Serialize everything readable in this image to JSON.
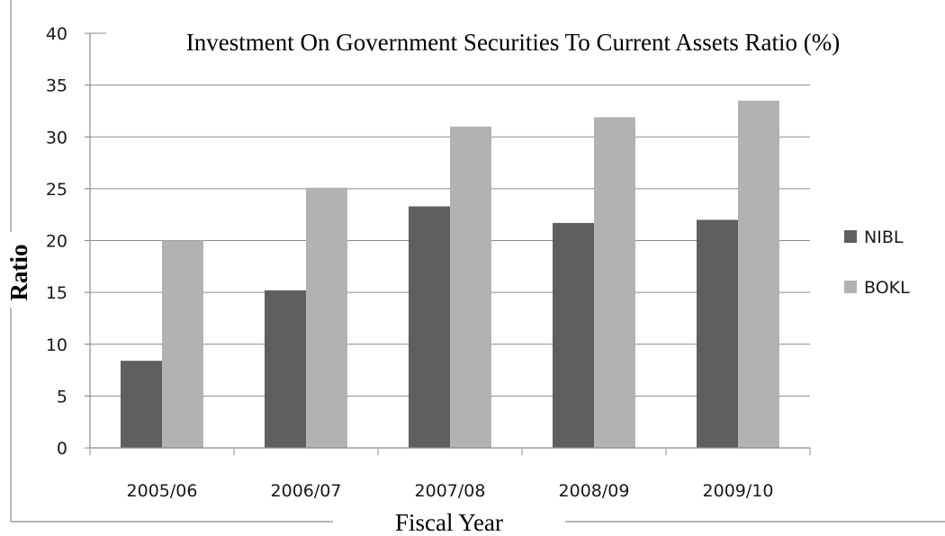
{
  "chart_data": {
    "type": "bar",
    "title": "Investment On Government Securities To Current Assets Ratio (%)",
    "xlabel": "Fiscal Year",
    "ylabel": "Ratio",
    "categories": [
      "2005/06",
      "2006/07",
      "2007/08",
      "2008/09",
      "2009/10"
    ],
    "series": [
      {
        "name": "NIBL",
        "values": [
          8.4,
          15.2,
          23.3,
          21.7,
          22.0
        ],
        "color": "#5f5f5f"
      },
      {
        "name": "BOKL",
        "values": [
          20.0,
          25.1,
          31.0,
          31.9,
          33.5
        ],
        "color": "#b2b2b2"
      }
    ],
    "ylim": [
      0,
      40
    ],
    "yticks": [
      "0",
      "5",
      "10",
      "15",
      "20",
      "25",
      "30",
      "35",
      "40"
    ],
    "grid": true,
    "legend": "right"
  }
}
